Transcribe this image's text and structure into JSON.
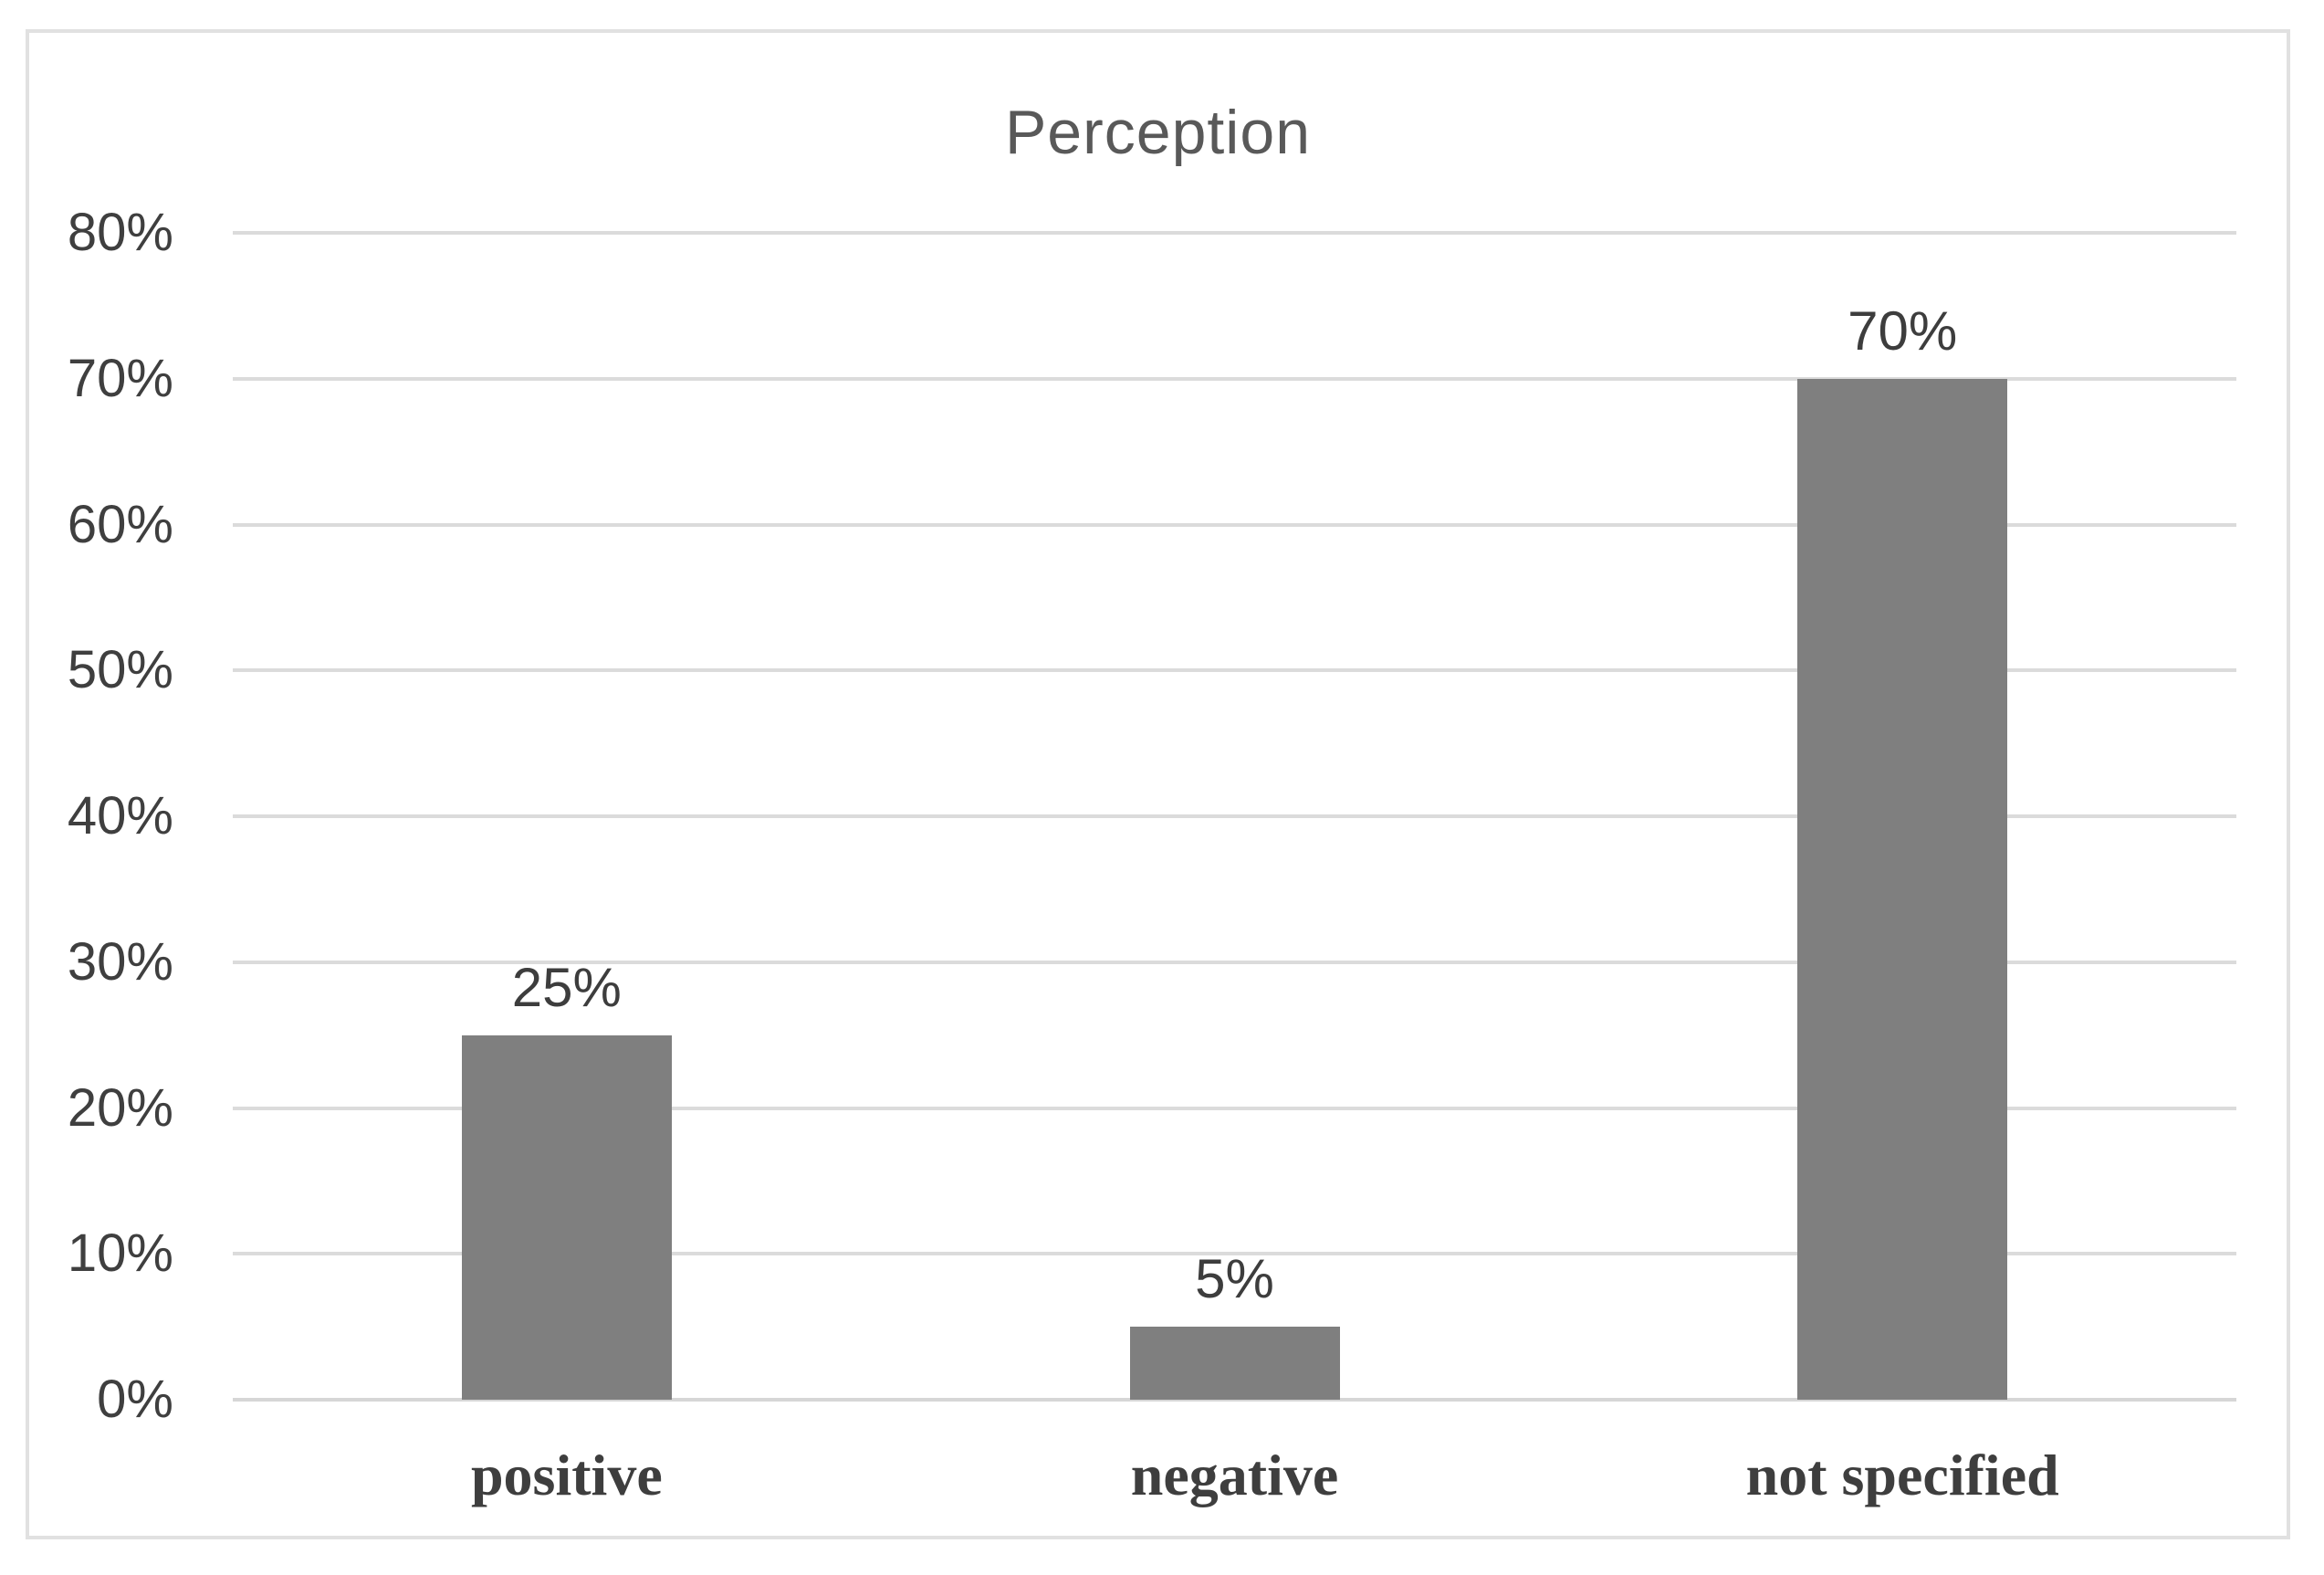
{
  "chart_data": {
    "type": "bar",
    "title": "Perception",
    "categories": [
      "positive",
      "negative",
      "not specified"
    ],
    "values": [
      25,
      5,
      70
    ],
    "data_labels": [
      "25%",
      "5%",
      "70%"
    ],
    "y_ticks": [
      {
        "label": "0%",
        "value": 0
      },
      {
        "label": "10%",
        "value": 10
      },
      {
        "label": "20%",
        "value": 20
      },
      {
        "label": "30%",
        "value": 30
      },
      {
        "label": "40%",
        "value": 40
      },
      {
        "label": "50%",
        "value": 50
      },
      {
        "label": "60%",
        "value": 60
      },
      {
        "label": "70%",
        "value": 70
      },
      {
        "label": "80%",
        "value": 80
      }
    ],
    "ylim": [
      0,
      80
    ],
    "xlabel": "",
    "ylabel": "",
    "grid": "horizontal",
    "legend": "none",
    "colors": {
      "bar_fill": "#7f7f7f",
      "gridline": "#dbdbdb",
      "axis_line": "#d6d6d6",
      "title_text": "#595959",
      "tick_text": "#3f3f3f",
      "data_label_text": "#3d3d3d",
      "category_text": "#3e3e3e",
      "frame_border": "#e1e1e1",
      "background": "#ffffff"
    }
  }
}
